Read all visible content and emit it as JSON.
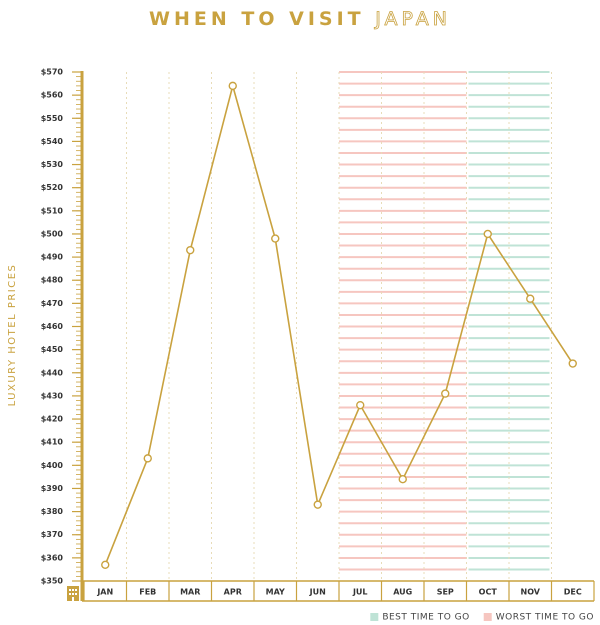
{
  "chart_data": {
    "type": "line",
    "title": {
      "main": "WHEN TO VISIT",
      "accent": "JAPAN"
    },
    "y_label": "LUXURY HOTEL PRICES",
    "categories": [
      "JAN",
      "FEB",
      "MAR",
      "APR",
      "MAY",
      "JUN",
      "JUL",
      "AUG",
      "SEP",
      "OCT",
      "NOV",
      "DEC"
    ],
    "values": [
      357,
      403,
      493,
      564,
      498,
      383,
      426,
      394,
      431,
      500,
      472,
      444
    ],
    "color": "#c9a23f",
    "ylim": [
      350,
      570
    ],
    "yticks": [
      {
        "value": 350,
        "label": "$350"
      },
      {
        "value": 360,
        "label": "$360"
      },
      {
        "value": 370,
        "label": "$370"
      },
      {
        "value": 380,
        "label": "$380"
      },
      {
        "value": 390,
        "label": "$390"
      },
      {
        "value": 400,
        "label": "$400"
      },
      {
        "value": 410,
        "label": "$410"
      },
      {
        "value": 420,
        "label": "$420"
      },
      {
        "value": 430,
        "label": "$430"
      },
      {
        "value": 440,
        "label": "$440"
      },
      {
        "value": 450,
        "label": "$450"
      },
      {
        "value": 460,
        "label": "$460"
      },
      {
        "value": 470,
        "label": "$470"
      },
      {
        "value": 480,
        "label": "$480"
      },
      {
        "value": 490,
        "label": "$490"
      },
      {
        "value": 500,
        "label": "$500"
      },
      {
        "value": 510,
        "label": "$510"
      },
      {
        "value": 520,
        "label": "$520"
      },
      {
        "value": 530,
        "label": "$530"
      },
      {
        "value": 540,
        "label": "$540"
      },
      {
        "value": 550,
        "label": "$550"
      },
      {
        "value": 560,
        "label": "$560"
      },
      {
        "value": 570,
        "label": "$570"
      }
    ],
    "highlights": [
      {
        "name": "BEST TIME TO GO",
        "color": "#bfe3d6",
        "months": [
          "OCT",
          "NOV"
        ]
      },
      {
        "name": "WORST TIME TO GO",
        "color": "#f6c6c0",
        "months": [
          "JUL",
          "AUG",
          "SEP"
        ]
      }
    ]
  }
}
